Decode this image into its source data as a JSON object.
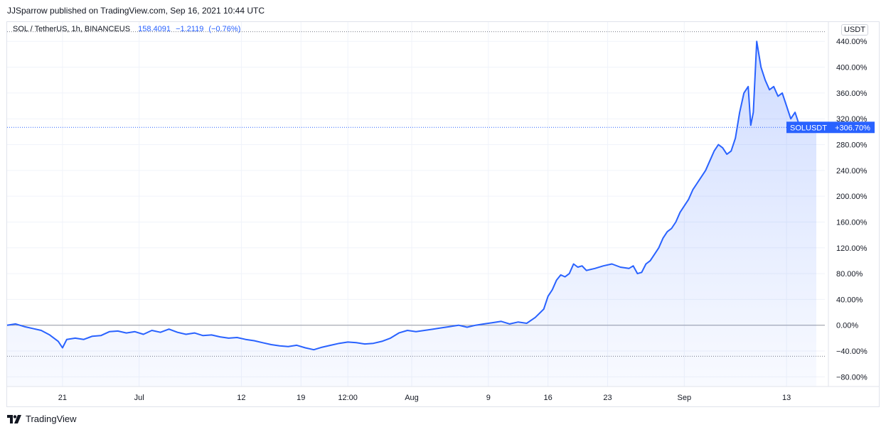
{
  "header": {
    "published": "JJSparrow published on TradingView.com, Sep 16, 2021 10:44 UTC"
  },
  "legend": {
    "symbol": "SOL / TetherUS, 1h, BINANCEUS",
    "last": "158.4091",
    "change": "−1.2119",
    "change_pct": "(−0.76%)"
  },
  "currency_label": "USDT",
  "footer": {
    "brand": "TradingView",
    "brand_icon": "tradingview-logo-icon"
  },
  "colors": {
    "line": "#2962ff",
    "fill": "#2962ff",
    "grid": "#f0f3fa",
    "zero_line": "#9598a1",
    "label_bg": "#2962ff"
  },
  "chart_data": {
    "type": "area",
    "symbol": "SOLUSDT",
    "ylim": [
      -95,
      470
    ],
    "yticks": [
      "440.00%",
      "400.00%",
      "360.00%",
      "320.00%",
      "280.00%",
      "240.00%",
      "200.00%",
      "160.00%",
      "120.00%",
      "80.00%",
      "40.00%",
      "0.00%",
      "−40.00%",
      "−80.00%"
    ],
    "ytick_values": [
      440,
      400,
      360,
      320,
      280,
      240,
      200,
      160,
      120,
      80,
      40,
      0,
      -40,
      -80
    ],
    "xticks": [
      "21",
      "Jul",
      "12",
      "19",
      "12:00",
      "Aug",
      "9",
      "16",
      "23",
      "Sep",
      "13"
    ],
    "xtick_positions": [
      6.5,
      15.5,
      27.5,
      34.5,
      40,
      47.5,
      56.5,
      63.5,
      70.5,
      79.5,
      91.5
    ],
    "xlim": [
      0,
      96
    ],
    "last_value_label": "+306.70%",
    "last_value": 306.7,
    "high_line": 455,
    "low_line": -48,
    "series": [
      {
        "x": [
          0,
          1,
          2,
          3,
          4,
          5,
          6,
          6.5,
          7,
          8,
          9,
          10,
          11,
          12,
          13,
          14,
          15,
          16,
          17,
          18,
          19,
          20,
          21,
          22,
          23,
          24,
          25,
          26,
          27,
          28,
          29,
          30,
          31,
          32,
          33,
          34,
          35,
          36,
          37,
          38,
          39,
          40,
          41,
          42,
          43,
          44,
          45,
          46,
          47,
          48,
          49,
          50,
          51,
          52,
          53,
          54,
          55,
          56,
          57,
          58,
          59,
          60,
          61,
          62,
          63,
          63.5,
          64,
          64.5,
          65,
          65.5,
          66,
          66.5,
          67,
          67.5,
          68,
          69,
          70,
          71,
          72,
          73,
          73.5,
          74,
          74.5,
          75,
          75.5,
          76,
          76.5,
          77,
          77.5,
          78,
          78.5,
          79,
          79.5,
          80,
          80.5,
          81,
          81.5,
          82,
          82.5,
          83,
          83.5,
          84,
          84.5,
          85,
          85.5,
          86,
          86.5,
          87,
          87.3,
          87.6,
          88,
          88.5,
          89,
          89.5,
          90,
          90.5,
          91,
          91.5,
          92,
          92.5,
          93,
          93.5,
          94,
          94.5,
          95
        ],
        "y": [
          0,
          2,
          -2,
          -5,
          -8,
          -15,
          -25,
          -35,
          -22,
          -20,
          -22,
          -17,
          -16,
          -10,
          -9,
          -12,
          -10,
          -14,
          -8,
          -11,
          -6,
          -11,
          -14,
          -12,
          -16,
          -15,
          -18,
          -20,
          -19,
          -22,
          -24,
          -27,
          -30,
          -32,
          -33,
          -31,
          -35,
          -38,
          -34,
          -31,
          -28,
          -26,
          -27,
          -29,
          -28,
          -25,
          -20,
          -12,
          -8,
          -10,
          -8,
          -6,
          -4,
          -2,
          0,
          -3,
          0,
          2,
          4,
          6,
          2,
          5,
          3,
          12,
          25,
          45,
          55,
          70,
          78,
          75,
          80,
          95,
          90,
          92,
          85,
          88,
          92,
          95,
          90,
          88,
          92,
          80,
          82,
          95,
          100,
          110,
          120,
          135,
          145,
          150,
          160,
          175,
          185,
          195,
          210,
          220,
          230,
          240,
          255,
          270,
          280,
          275,
          265,
          270,
          290,
          330,
          360,
          370,
          310,
          330,
          440,
          400,
          380,
          365,
          370,
          355,
          360,
          340,
          320,
          330,
          310,
          300,
          305,
          300,
          306.7
        ]
      }
    ]
  }
}
